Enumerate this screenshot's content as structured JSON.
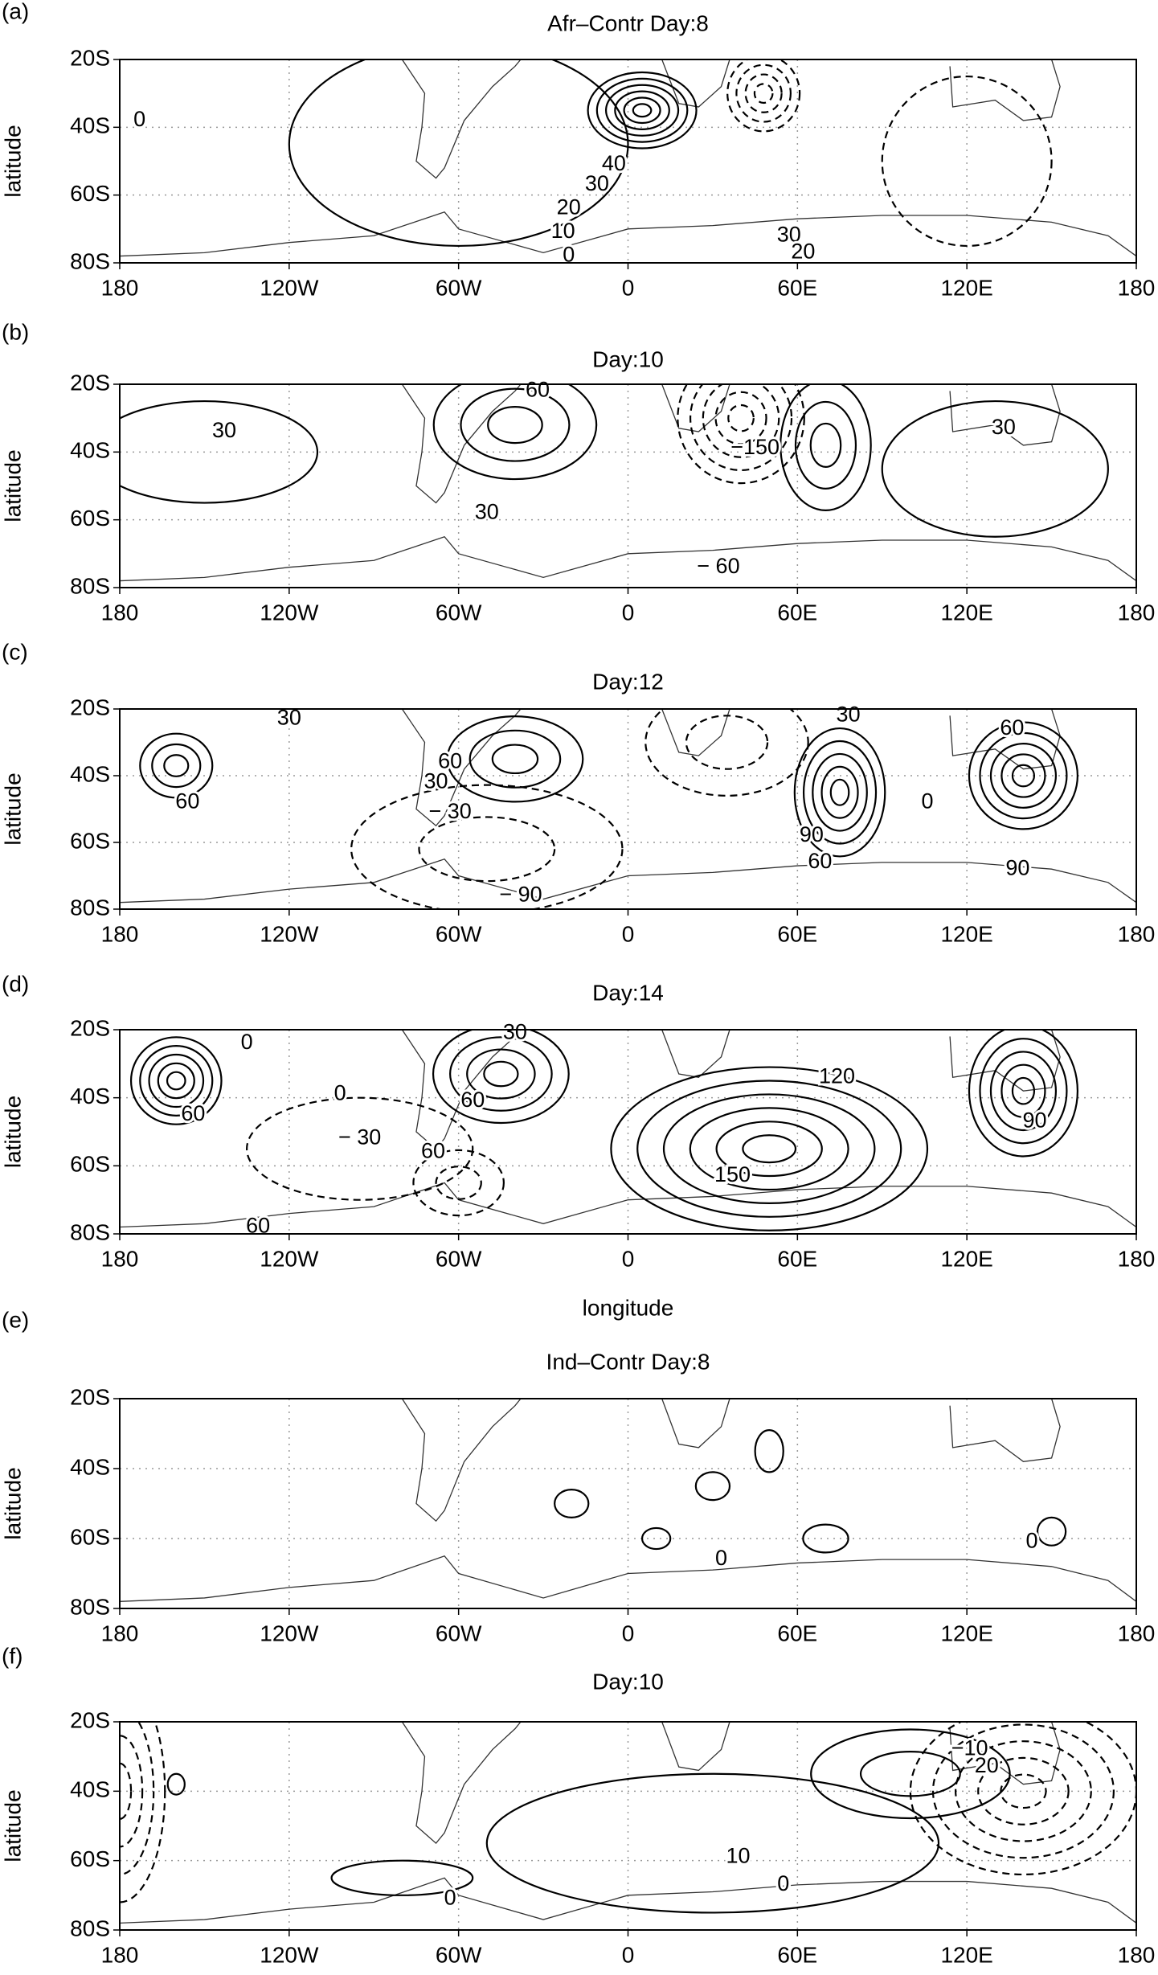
{
  "chart_data": [
    {
      "type": "contour",
      "panel": "(a)",
      "title": "Afr–Contr Day:8",
      "ylabel": "latitude",
      "xlim": [
        -180,
        180
      ],
      "ylim": [
        -80,
        -20
      ],
      "grid": true,
      "xticks": [
        {
          "value": -180,
          "label": "180"
        },
        {
          "value": -120,
          "label": "120W"
        },
        {
          "value": -60,
          "label": "60W"
        },
        0,
        {
          "value": 60,
          "label": "60E"
        },
        {
          "value": 120,
          "label": "120E"
        },
        {
          "value": 180,
          "label": "180"
        }
      ],
      "yticks": [
        {
          "value": -20,
          "label": "20S"
        },
        {
          "value": -40,
          "label": "40S"
        },
        {
          "value": -60,
          "label": "60S"
        },
        {
          "value": -80,
          "label": "80S"
        }
      ],
      "annotations": [
        "0",
        "40",
        "30",
        "20",
        "10",
        "0",
        "30",
        "20"
      ]
    },
    {
      "type": "contour",
      "panel": "(b)",
      "title": "Day:10",
      "ylabel": "latitude",
      "xlim": [
        -180,
        180
      ],
      "ylim": [
        -80,
        -20
      ],
      "grid": true,
      "xticks": [
        {
          "value": -180,
          "label": "180"
        },
        {
          "value": -120,
          "label": "120W"
        },
        {
          "value": -60,
          "label": "60W"
        },
        0,
        {
          "value": 60,
          "label": "60E"
        },
        {
          "value": 120,
          "label": "120E"
        },
        {
          "value": 180,
          "label": "180"
        }
      ],
      "yticks": [
        {
          "value": -20,
          "label": "20S"
        },
        {
          "value": -40,
          "label": "40S"
        },
        {
          "value": -60,
          "label": "60S"
        },
        {
          "value": -80,
          "label": "80S"
        }
      ],
      "annotations": [
        "30",
        "60",
        "−150",
        "30",
        "− 60",
        "30"
      ]
    },
    {
      "type": "contour",
      "panel": "(c)",
      "title": "Day:12",
      "ylabel": "latitude",
      "xlim": [
        -180,
        180
      ],
      "ylim": [
        -80,
        -20
      ],
      "grid": true,
      "xticks": [
        {
          "value": -180,
          "label": "180"
        },
        {
          "value": -120,
          "label": "120W"
        },
        {
          "value": -60,
          "label": "60W"
        },
        0,
        {
          "value": 60,
          "label": "60E"
        },
        {
          "value": 120,
          "label": "120E"
        },
        {
          "value": 180,
          "label": "180"
        }
      ],
      "yticks": [
        {
          "value": -20,
          "label": "20S"
        },
        {
          "value": -40,
          "label": "40S"
        },
        {
          "value": -60,
          "label": "60S"
        },
        {
          "value": -80,
          "label": "80S"
        }
      ],
      "annotations": [
        "30",
        "60",
        "60",
        "30",
        "− 30",
        "− 90",
        "30",
        "60",
        "0",
        "90",
        "60",
        "90"
      ]
    },
    {
      "type": "contour",
      "panel": "(d)",
      "title": "Day:14",
      "ylabel": "latitude",
      "xlabel": "longitude",
      "xlim": [
        -180,
        180
      ],
      "ylim": [
        -80,
        -20
      ],
      "grid": true,
      "xticks": [
        {
          "value": -180,
          "label": "180"
        },
        {
          "value": -120,
          "label": "120W"
        },
        {
          "value": -60,
          "label": "60W"
        },
        0,
        {
          "value": 60,
          "label": "60E"
        },
        {
          "value": 120,
          "label": "120E"
        },
        {
          "value": 180,
          "label": "180"
        }
      ],
      "yticks": [
        {
          "value": -20,
          "label": "20S"
        },
        {
          "value": -40,
          "label": "40S"
        },
        {
          "value": -60,
          "label": "60S"
        },
        {
          "value": -80,
          "label": "80S"
        }
      ],
      "annotations": [
        "0",
        "30",
        "0",
        "60",
        "60",
        "− 30",
        "60",
        "120",
        "150",
        "90",
        "60"
      ]
    },
    {
      "type": "contour",
      "panel": "(e)",
      "title": "Ind–Contr Day:8",
      "ylabel": "latitude",
      "xlim": [
        -180,
        180
      ],
      "ylim": [
        -80,
        -20
      ],
      "grid": true,
      "xticks": [
        {
          "value": -180,
          "label": "180"
        },
        {
          "value": -120,
          "label": "120W"
        },
        {
          "value": -60,
          "label": "60W"
        },
        0,
        {
          "value": 60,
          "label": "60E"
        },
        {
          "value": 120,
          "label": "120E"
        },
        {
          "value": 180,
          "label": "180"
        }
      ],
      "yticks": [
        {
          "value": -20,
          "label": "20S"
        },
        {
          "value": -40,
          "label": "40S"
        },
        {
          "value": -60,
          "label": "60S"
        },
        {
          "value": -80,
          "label": "80S"
        }
      ],
      "annotations": [
        "0",
        "0"
      ]
    },
    {
      "type": "contour",
      "panel": "(f)",
      "title": "Day:10",
      "ylabel": "latitude",
      "xlim": [
        -180,
        180
      ],
      "ylim": [
        -80,
        -20
      ],
      "grid": true,
      "xticks": [
        {
          "value": -180,
          "label": "180"
        },
        {
          "value": -120,
          "label": "120W"
        },
        {
          "value": -60,
          "label": "60W"
        },
        0,
        {
          "value": 60,
          "label": "60E"
        },
        {
          "value": 120,
          "label": "120E"
        },
        {
          "value": 180,
          "label": "180"
        }
      ],
      "yticks": [
        {
          "value": -20,
          "label": "20S"
        },
        {
          "value": -40,
          "label": "40S"
        },
        {
          "value": -60,
          "label": "60S"
        },
        {
          "value": -80,
          "label": "80S"
        }
      ],
      "annotations": [
        "−10",
        "20",
        "10",
        "0",
        "0"
      ]
    }
  ]
}
